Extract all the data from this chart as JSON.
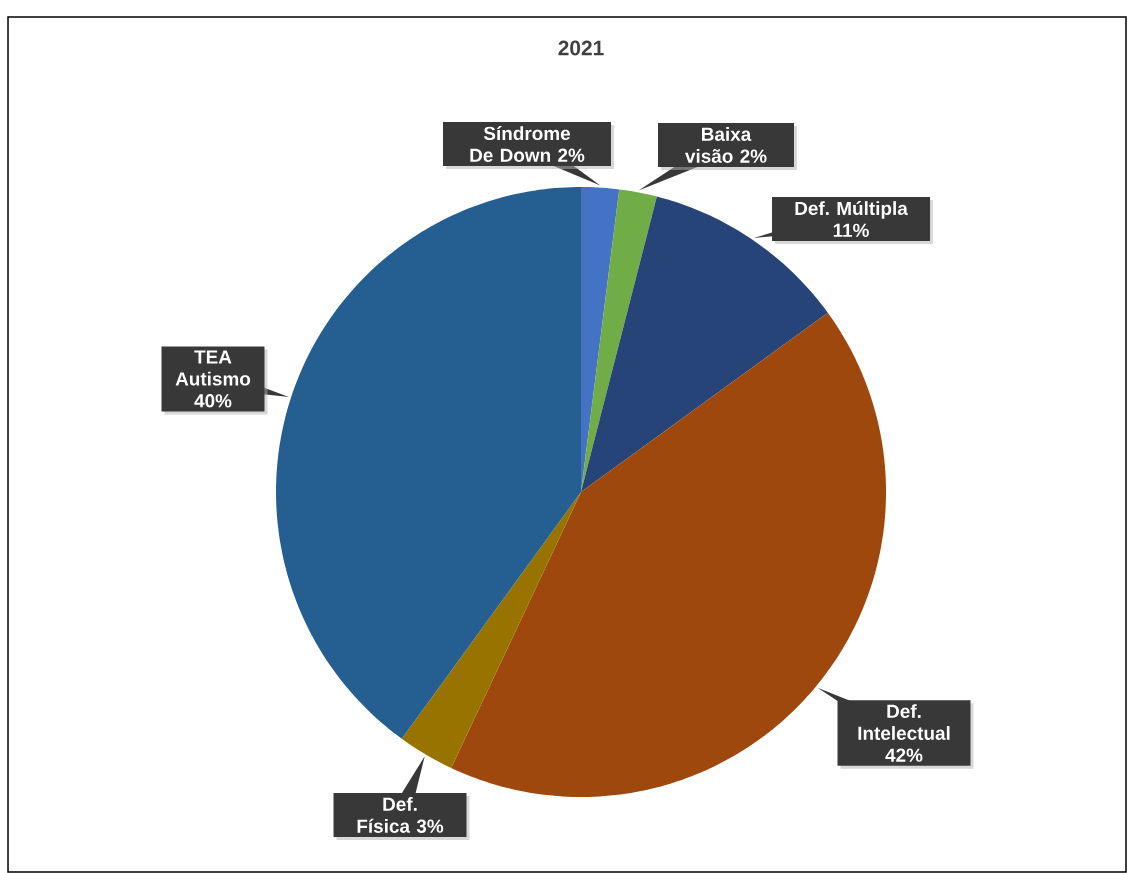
{
  "chart_data": {
    "type": "pie",
    "title": "2021",
    "categories": [
      "Síndrome De Down",
      "Baixa visão",
      "Def. Múltipla",
      "Def. Intelectual",
      "Def. Física",
      "TEA Autismo"
    ],
    "values": [
      2,
      2,
      11,
      42,
      3,
      40
    ],
    "value_labels": [
      "2%",
      "2%",
      "11%",
      "42%",
      "3%",
      "40%"
    ],
    "colors": [
      "#4472c4",
      "#70ad47",
      "#264478",
      "#9e480e",
      "#997300",
      "#255e91"
    ]
  }
}
